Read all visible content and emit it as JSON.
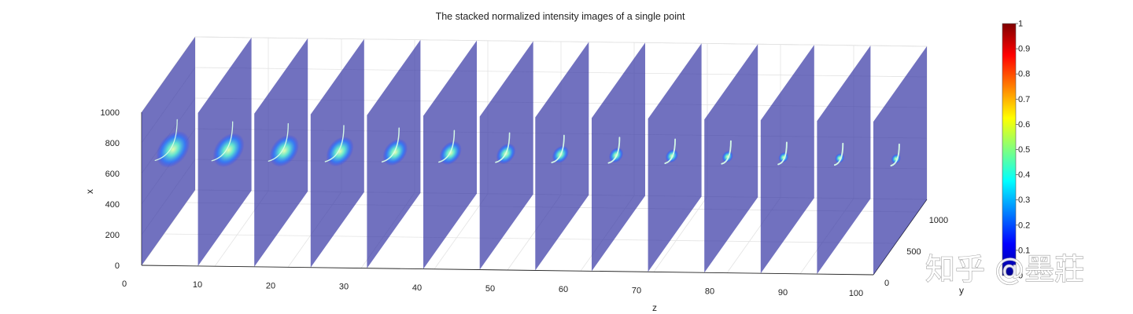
{
  "chart_data": {
    "type": "3d-stacked-slices",
    "title": "The stacked normalized intensity images of a single point",
    "xlabel": "z",
    "ylabel": "y",
    "zlabel": "x",
    "z_ticks": [
      0,
      10,
      20,
      30,
      40,
      50,
      60,
      70,
      80,
      90,
      100
    ],
    "y_ticks": [
      0,
      500,
      1000
    ],
    "x_ticks": [
      0,
      200,
      400,
      600,
      800,
      1000
    ],
    "zlim": [
      0,
      100
    ],
    "ylim": [
      0,
      1200
    ],
    "xlim": [
      0,
      1000
    ],
    "slice_positions_z": [
      0,
      7.7,
      15.4,
      23.1,
      30.8,
      38.5,
      46.2,
      53.8,
      61.5,
      69.2,
      76.9,
      84.6,
      92.3,
      100
    ],
    "slice_spot_extent": [
      1.0,
      0.92,
      0.85,
      0.78,
      0.68,
      0.58,
      0.48,
      0.38,
      0.3,
      0.24,
      0.18,
      0.14,
      0.12,
      0.12
    ],
    "colorbar": {
      "colormap": "jet",
      "range": [
        0,
        1
      ],
      "ticks": [
        "0",
        "0.1",
        "0.2",
        "0.3",
        "0.4",
        "0.5",
        "0.6",
        "0.7",
        "0.8",
        "0.9",
        "1"
      ]
    },
    "colors": {
      "slice_fill": "#3a3aa6",
      "background_level": "#00008f"
    },
    "grid": true,
    "watermark": "知乎 @墨莊"
  }
}
